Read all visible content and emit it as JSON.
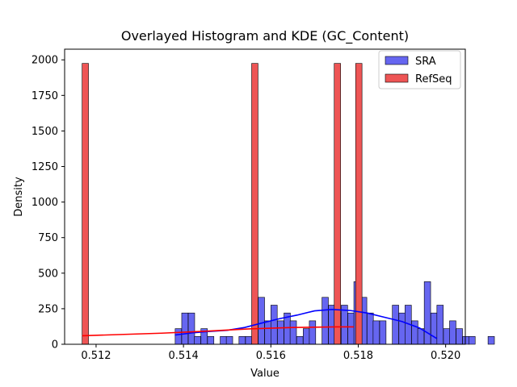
{
  "chart_data": {
    "type": "bar",
    "title": "Overlayed Histogram and KDE (GC_Content)",
    "xlabel": "Value",
    "ylabel": "Density",
    "xlim": [
      0.51128,
      0.52045
    ],
    "ylim": [
      0,
      2075
    ],
    "xticks": [
      0.512,
      0.514,
      0.516,
      0.518,
      0.52
    ],
    "xtick_labels": [
      "0.512",
      "0.514",
      "0.516",
      "0.518",
      "0.520"
    ],
    "yticks": [
      0,
      250,
      500,
      750,
      1000,
      1250,
      1500,
      1750,
      2000
    ],
    "ytick_labels": [
      "0",
      "250",
      "500",
      "750",
      "1000",
      "1250",
      "1500",
      "1750",
      "2000"
    ],
    "legend_position": "top-right",
    "grid": false,
    "series": [
      {
        "name": "SRA",
        "kind": "histogram",
        "color": "#0000ff",
        "fill": "#6666f0",
        "bin_width": 0.000146,
        "bins": [
          [
            0.51381,
            110
          ],
          [
            0.51396,
            220
          ],
          [
            0.51411,
            220
          ],
          [
            0.51425,
            55
          ],
          [
            0.5144,
            110
          ],
          [
            0.51455,
            55
          ],
          [
            0.51484,
            55
          ],
          [
            0.51498,
            55
          ],
          [
            0.51527,
            55
          ],
          [
            0.51542,
            55
          ],
          [
            0.51557,
            55
          ],
          [
            0.51571,
            330
          ],
          [
            0.51586,
            165
          ],
          [
            0.516,
            275
          ],
          [
            0.51615,
            165
          ],
          [
            0.5163,
            220
          ],
          [
            0.51644,
            165
          ],
          [
            0.51659,
            55
          ],
          [
            0.51674,
            110
          ],
          [
            0.51688,
            165
          ],
          [
            0.51717,
            330
          ],
          [
            0.51732,
            275
          ],
          [
            0.51747,
            220
          ],
          [
            0.51761,
            275
          ],
          [
            0.51776,
            220
          ],
          [
            0.5179,
            440
          ],
          [
            0.51805,
            330
          ],
          [
            0.5182,
            220
          ],
          [
            0.51834,
            165
          ],
          [
            0.51849,
            165
          ],
          [
            0.51878,
            275
          ],
          [
            0.51893,
            220
          ],
          [
            0.51907,
            275
          ],
          [
            0.51922,
            165
          ],
          [
            0.51936,
            110
          ],
          [
            0.51951,
            440
          ],
          [
            0.51966,
            220
          ],
          [
            0.5198,
            275
          ],
          [
            0.51995,
            110
          ],
          [
            0.52009,
            165
          ],
          [
            0.52024,
            110
          ],
          [
            0.52039,
            55
          ],
          [
            0.52053,
            55
          ],
          [
            0.52097,
            55
          ]
        ],
        "kde": {
          "x": [
            0.5138,
            0.5142,
            0.5146,
            0.515,
            0.5154,
            0.5158,
            0.5162,
            0.5166,
            0.517,
            0.5174,
            0.5178,
            0.5182,
            0.5186,
            0.519,
            0.5194,
            0.5198
          ],
          "y": [
            65,
            80,
            90,
            98,
            118,
            150,
            180,
            205,
            235,
            245,
            238,
            220,
            190,
            160,
            115,
            40
          ]
        }
      },
      {
        "name": "RefSeq",
        "kind": "histogram",
        "color": "#ff0000",
        "fill": "#ee5555",
        "bin_width": 0.000146,
        "bins": [
          [
            0.51168,
            1975
          ],
          [
            0.51556,
            1975
          ],
          [
            0.51745,
            1975
          ],
          [
            0.51794,
            1975
          ]
        ],
        "kde": {
          "x": [
            0.51168,
            0.5125,
            0.5135,
            0.5145,
            0.5155,
            0.5165,
            0.5175,
            0.5179
          ],
          "y": [
            60,
            68,
            78,
            92,
            108,
            118,
            122,
            122
          ]
        }
      }
    ]
  }
}
